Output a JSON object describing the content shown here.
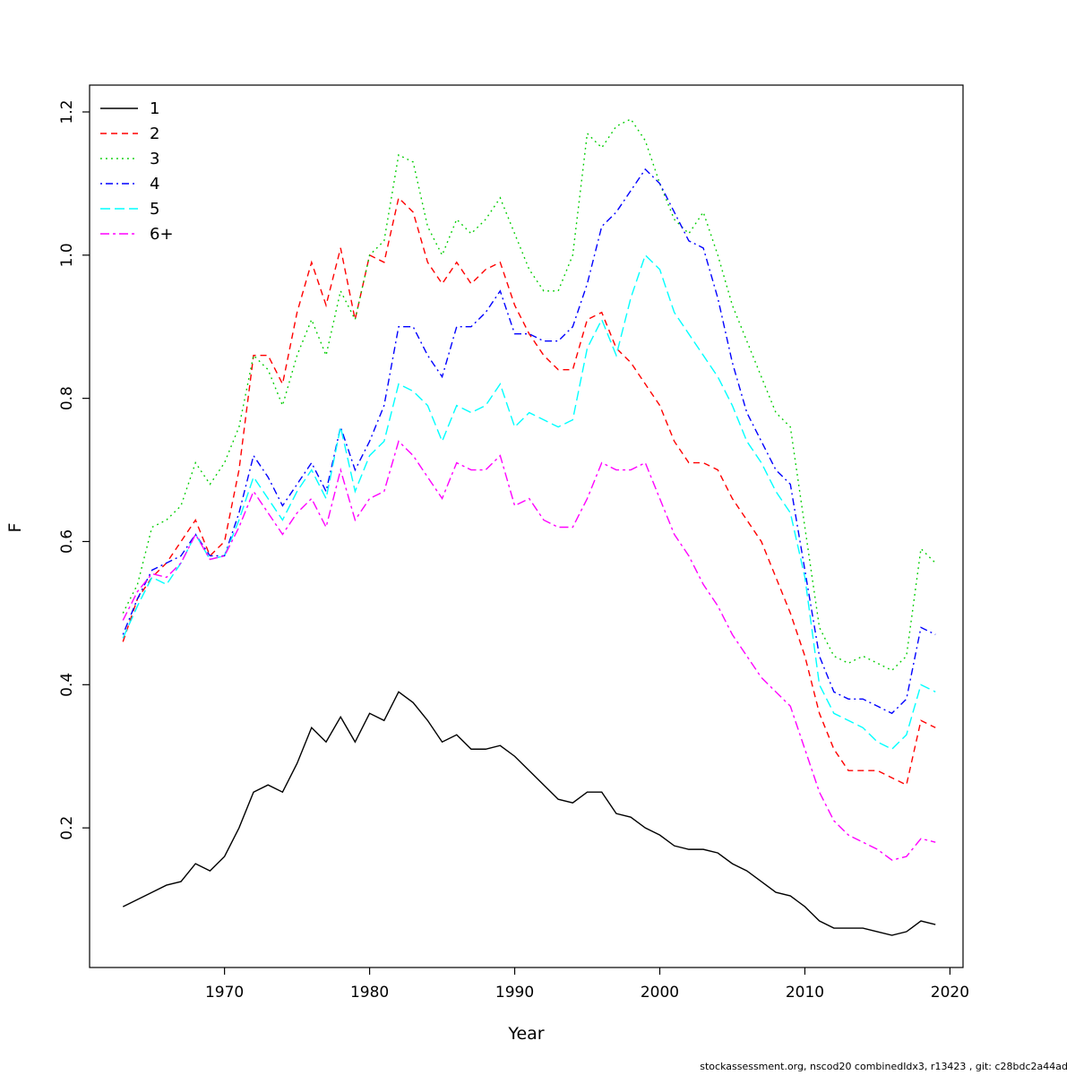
{
  "page": {
    "footer": "stockassessment.org, nscod20  combinedIdx3, r13423 , git: c28bdc2a44ad"
  },
  "chart_data": {
    "type": "line",
    "title": "",
    "xlabel": "Year",
    "ylabel": "F",
    "grid": false,
    "legend_position": "top-left",
    "x_ticks": [
      1970,
      1980,
      1990,
      2000,
      2010,
      2020
    ],
    "y_ticks": [
      0.2,
      0.4,
      0.6,
      0.8,
      1.0,
      1.2
    ],
    "xlim": [
      1960.7,
      2020.9
    ],
    "ylim": [
      0.005,
      1.2375
    ],
    "x": [
      1963,
      1964,
      1965,
      1966,
      1967,
      1968,
      1969,
      1970,
      1971,
      1972,
      1973,
      1974,
      1975,
      1976,
      1977,
      1978,
      1979,
      1980,
      1981,
      1982,
      1983,
      1984,
      1985,
      1986,
      1987,
      1988,
      1989,
      1990,
      1991,
      1992,
      1993,
      1994,
      1995,
      1996,
      1997,
      1998,
      1999,
      2000,
      2001,
      2002,
      2003,
      2004,
      2005,
      2006,
      2007,
      2008,
      2009,
      2010,
      2011,
      2012,
      2013,
      2014,
      2015,
      2016,
      2017,
      2018,
      2019
    ],
    "series": [
      {
        "name": "1",
        "color": "#000000",
        "linetype": "solid",
        "values": [
          0.09,
          0.1,
          0.11,
          0.12,
          0.125,
          0.15,
          0.14,
          0.16,
          0.2,
          0.25,
          0.26,
          0.25,
          0.29,
          0.34,
          0.32,
          0.355,
          0.32,
          0.36,
          0.35,
          0.39,
          0.375,
          0.35,
          0.32,
          0.33,
          0.31,
          0.31,
          0.315,
          0.3,
          0.28,
          0.26,
          0.24,
          0.235,
          0.25,
          0.25,
          0.22,
          0.215,
          0.2,
          0.19,
          0.175,
          0.17,
          0.17,
          0.165,
          0.15,
          0.14,
          0.125,
          0.11,
          0.105,
          0.09,
          0.07,
          0.06,
          0.06,
          0.06,
          0.055,
          0.05,
          0.055,
          0.07,
          0.065
        ]
      },
      {
        "name": "2",
        "color": "#FF0000",
        "linetype": "dashed",
        "values": [
          0.46,
          0.52,
          0.55,
          0.57,
          0.6,
          0.63,
          0.58,
          0.6,
          0.7,
          0.86,
          0.86,
          0.82,
          0.92,
          0.99,
          0.93,
          1.01,
          0.91,
          1.0,
          0.99,
          1.08,
          1.06,
          0.99,
          0.96,
          0.99,
          0.96,
          0.98,
          0.99,
          0.93,
          0.89,
          0.86,
          0.84,
          0.84,
          0.91,
          0.92,
          0.87,
          0.85,
          0.82,
          0.79,
          0.74,
          0.71,
          0.71,
          0.7,
          0.66,
          0.63,
          0.6,
          0.55,
          0.5,
          0.44,
          0.36,
          0.31,
          0.28,
          0.28,
          0.28,
          0.27,
          0.26,
          0.35,
          0.34
        ]
      },
      {
        "name": "3",
        "color": "#00CD00",
        "linetype": "dotted",
        "values": [
          0.5,
          0.54,
          0.62,
          0.63,
          0.65,
          0.71,
          0.68,
          0.71,
          0.76,
          0.86,
          0.84,
          0.79,
          0.86,
          0.91,
          0.86,
          0.95,
          0.91,
          1.0,
          1.02,
          1.14,
          1.13,
          1.04,
          1.0,
          1.05,
          1.03,
          1.05,
          1.08,
          1.03,
          0.98,
          0.95,
          0.95,
          1.0,
          1.17,
          1.15,
          1.18,
          1.19,
          1.16,
          1.1,
          1.05,
          1.03,
          1.06,
          1.0,
          0.93,
          0.88,
          0.83,
          0.78,
          0.76,
          0.62,
          0.48,
          0.44,
          0.43,
          0.44,
          0.43,
          0.42,
          0.44,
          0.59,
          0.57
        ]
      },
      {
        "name": "4",
        "color": "#0000FF",
        "linetype": "dotdash",
        "values": [
          0.47,
          0.52,
          0.56,
          0.57,
          0.58,
          0.61,
          0.58,
          0.58,
          0.64,
          0.72,
          0.69,
          0.65,
          0.68,
          0.71,
          0.67,
          0.76,
          0.7,
          0.74,
          0.79,
          0.9,
          0.9,
          0.86,
          0.83,
          0.9,
          0.9,
          0.92,
          0.95,
          0.89,
          0.89,
          0.88,
          0.88,
          0.9,
          0.96,
          1.04,
          1.06,
          1.09,
          1.12,
          1.1,
          1.06,
          1.02,
          1.01,
          0.94,
          0.85,
          0.78,
          0.74,
          0.7,
          0.68,
          0.56,
          0.44,
          0.39,
          0.38,
          0.38,
          0.37,
          0.36,
          0.38,
          0.48,
          0.47
        ]
      },
      {
        "name": "5",
        "color": "#00FFFF",
        "linetype": "longdash",
        "values": [
          0.465,
          0.51,
          0.55,
          0.54,
          0.57,
          0.61,
          0.575,
          0.58,
          0.63,
          0.69,
          0.66,
          0.63,
          0.67,
          0.7,
          0.66,
          0.76,
          0.67,
          0.72,
          0.74,
          0.82,
          0.81,
          0.79,
          0.74,
          0.79,
          0.78,
          0.79,
          0.82,
          0.76,
          0.78,
          0.77,
          0.76,
          0.77,
          0.87,
          0.91,
          0.86,
          0.94,
          1.0,
          0.98,
          0.92,
          0.89,
          0.86,
          0.83,
          0.79,
          0.74,
          0.71,
          0.67,
          0.64,
          0.55,
          0.4,
          0.36,
          0.35,
          0.34,
          0.32,
          0.31,
          0.33,
          0.4,
          0.39
        ]
      },
      {
        "name": "6+",
        "color": "#FF00FF",
        "linetype": "twodash",
        "values": [
          0.49,
          0.53,
          0.555,
          0.55,
          0.57,
          0.61,
          0.575,
          0.58,
          0.62,
          0.67,
          0.64,
          0.61,
          0.64,
          0.66,
          0.62,
          0.7,
          0.63,
          0.66,
          0.67,
          0.74,
          0.72,
          0.69,
          0.66,
          0.71,
          0.7,
          0.7,
          0.72,
          0.65,
          0.66,
          0.63,
          0.62,
          0.62,
          0.66,
          0.71,
          0.7,
          0.7,
          0.71,
          0.66,
          0.61,
          0.58,
          0.54,
          0.51,
          0.47,
          0.44,
          0.41,
          0.39,
          0.37,
          0.31,
          0.25,
          0.21,
          0.19,
          0.18,
          0.17,
          0.155,
          0.16,
          0.185,
          0.18
        ]
      }
    ]
  }
}
